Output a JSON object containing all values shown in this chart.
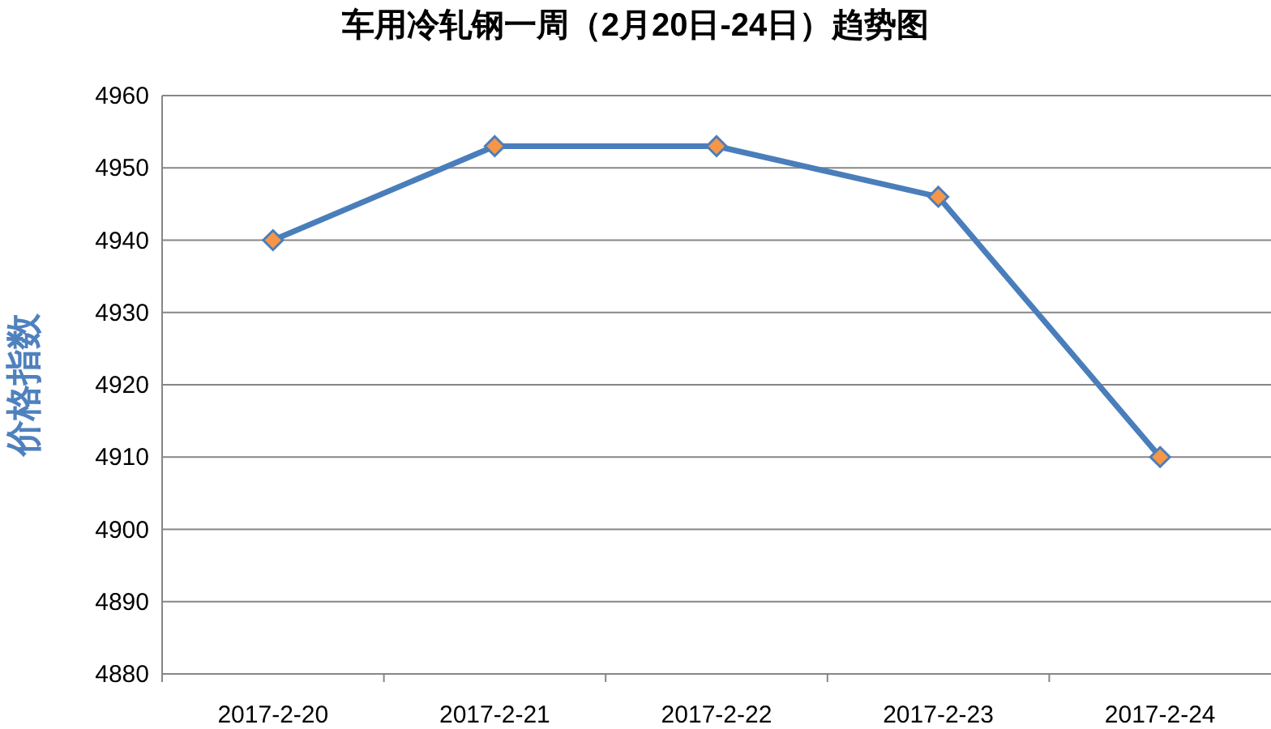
{
  "chart_data": {
    "type": "line",
    "title": "车用冷轧钢一周（2月20日-24日）趋势图",
    "ylabel": "价格指数",
    "categories": [
      "2017-2-20",
      "2017-2-21",
      "2017-2-22",
      "2017-2-23",
      "2017-2-24"
    ],
    "series": [
      {
        "color": "#4a7ebb",
        "values": [
          4940,
          4953,
          4953,
          4946,
          4910
        ]
      }
    ],
    "ylim": [
      4880,
      4960
    ],
    "yticks": [
      4880,
      4890,
      4900,
      4910,
      4920,
      4930,
      4940,
      4950,
      4960
    ],
    "grid": "y",
    "marker": "diamond",
    "line_style": "solid"
  }
}
